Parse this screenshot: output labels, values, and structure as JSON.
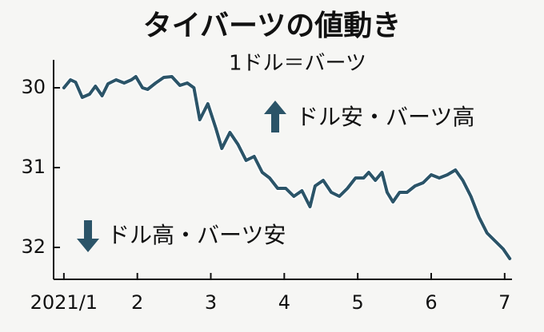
{
  "chart_data": {
    "type": "line",
    "title": "タイバーツの値動き",
    "subtitle": "1ドル＝バーツ",
    "annotations": [
      "ドル安・バーツ高",
      "ドル高・バーツ安"
    ],
    "x": [
      1.0,
      1.09,
      1.16,
      1.25,
      1.35,
      1.43,
      1.52,
      1.6,
      1.71,
      1.82,
      1.92,
      1.98,
      2.07,
      2.14,
      2.25,
      2.36,
      2.47,
      2.58,
      2.68,
      2.77,
      2.85,
      2.96,
      3.07,
      3.15,
      3.26,
      3.37,
      3.48,
      3.59,
      3.7,
      3.8,
      3.91,
      4.02,
      4.13,
      4.24,
      4.35,
      4.42,
      4.53,
      4.64,
      4.75,
      4.86,
      4.97,
      5.08,
      5.15,
      5.24,
      5.33,
      5.4,
      5.48,
      5.57,
      5.67,
      5.78,
      5.89,
      6.0,
      6.11,
      6.22,
      6.33,
      6.43,
      6.54,
      6.65,
      6.76,
      6.87,
      6.98,
      7.07
    ],
    "values": [
      30.0,
      29.9,
      29.93,
      30.12,
      30.08,
      29.98,
      30.1,
      29.95,
      29.9,
      29.94,
      29.9,
      29.86,
      30.0,
      30.02,
      29.94,
      29.87,
      29.86,
      29.97,
      29.94,
      30.0,
      30.4,
      30.2,
      30.51,
      30.76,
      30.56,
      30.71,
      30.91,
      30.86,
      31.06,
      31.13,
      31.26,
      31.26,
      31.36,
      31.29,
      31.49,
      31.23,
      31.16,
      31.31,
      31.36,
      31.26,
      31.13,
      31.13,
      31.06,
      31.16,
      31.06,
      31.31,
      31.43,
      31.31,
      31.31,
      31.23,
      31.19,
      31.09,
      31.13,
      31.09,
      31.03,
      31.16,
      31.36,
      31.62,
      31.82,
      31.92,
      32.02,
      32.14
    ],
    "color": "#2b5468",
    "xlim": [
      0.86,
      7.1
    ],
    "xticks": [
      {
        "value": 1,
        "label": "2021/1"
      },
      2,
      3,
      4,
      5,
      6,
      7
    ],
    "ylim": [
      29.65,
      32.4
    ],
    "y_inverted": true,
    "yticks": [
      30,
      31,
      32
    ]
  }
}
